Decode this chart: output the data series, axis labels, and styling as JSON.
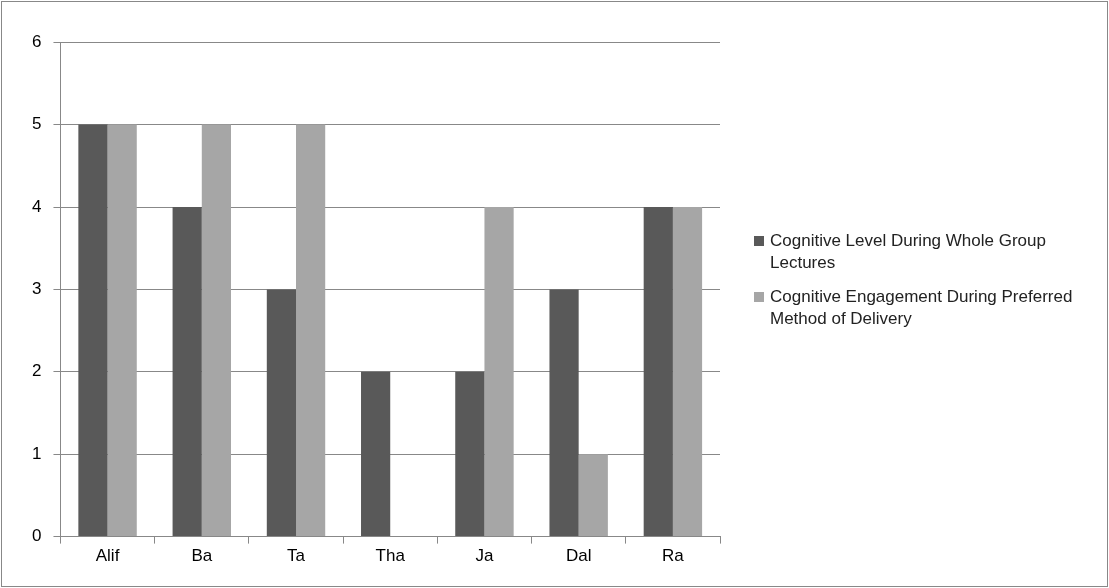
{
  "chart_data": {
    "type": "bar",
    "categories": [
      "Alif",
      "Ba",
      "Ta",
      "Tha",
      "Ja",
      "Dal",
      "Ra"
    ],
    "series": [
      {
        "name": "Cognitive Level During Whole Group Lectures",
        "color": "#595959",
        "values": [
          5,
          4,
          3,
          2,
          2,
          3,
          4
        ]
      },
      {
        "name": "Cognitive Engagement During Preferred Method of Delivery",
        "color": "#a6a6a6",
        "values": [
          5,
          5,
          5,
          0,
          4,
          1,
          4
        ]
      }
    ],
    "ylim": [
      0,
      6
    ],
    "yticks": [
      0,
      1,
      2,
      3,
      4,
      5,
      6
    ],
    "grid": "y",
    "legend": "right"
  }
}
